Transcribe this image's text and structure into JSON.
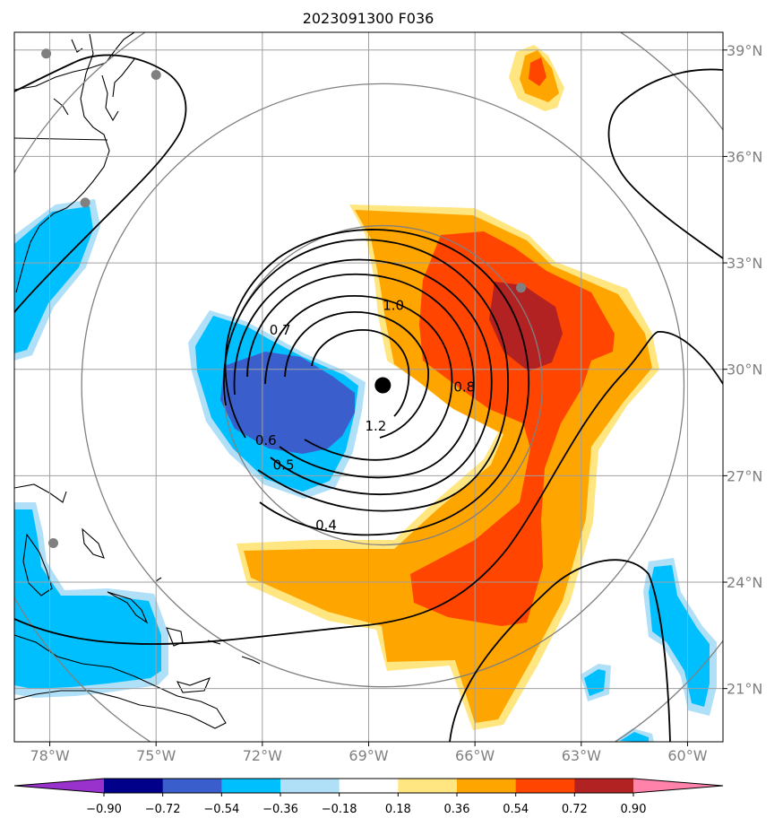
{
  "title": "2023091300 F036",
  "map": {
    "lon_range": [
      -79,
      -59
    ],
    "lat_range": [
      19.5,
      39.5
    ],
    "lon_ticks": [
      {
        "lon": -78,
        "label": "78°W"
      },
      {
        "lon": -75,
        "label": "75°W"
      },
      {
        "lon": -72,
        "label": "72°W"
      },
      {
        "lon": -69,
        "label": "69°W"
      },
      {
        "lon": -66,
        "label": "66°W"
      },
      {
        "lon": -63,
        "label": "63°W"
      },
      {
        "lon": -60,
        "label": "60°W"
      }
    ],
    "lat_ticks": [
      {
        "lat": 39,
        "label": "39°N"
      },
      {
        "lat": 36,
        "label": "36°N"
      },
      {
        "lat": 33,
        "label": "33°N"
      },
      {
        "lat": 30,
        "label": "30°N"
      },
      {
        "lat": 27,
        "label": "27°N"
      },
      {
        "lat": 24,
        "label": "24°N"
      },
      {
        "lat": 21,
        "label": "21°N"
      }
    ],
    "storm_center": {
      "lon": -68.6,
      "lat": 29.55
    },
    "range_rings_deg": [
      4.5,
      8.5,
      12.0
    ],
    "station_dots": [
      {
        "lon": -78.1,
        "lat": 38.9
      },
      {
        "lon": -75.0,
        "lat": 38.3
      },
      {
        "lon": -77.0,
        "lat": 34.7
      },
      {
        "lon": -64.7,
        "lat": 32.3
      },
      {
        "lon": -77.9,
        "lat": 25.1
      }
    ],
    "contour_labels": [
      {
        "text": "1.0",
        "lon": -68.3,
        "lat": 31.8
      },
      {
        "text": "0.7",
        "lon": -71.5,
        "lat": 31.1
      },
      {
        "text": "0.8",
        "lon": -66.3,
        "lat": 29.5
      },
      {
        "text": "1.2",
        "lon": -68.8,
        "lat": 28.4
      },
      {
        "text": "0.6",
        "lon": -71.9,
        "lat": 28.0
      },
      {
        "text": "0.5",
        "lon": -71.4,
        "lat": 27.3
      },
      {
        "text": "0.4",
        "lon": -70.2,
        "lat": 25.6
      }
    ]
  },
  "colorbar": {
    "ticks": [
      "−0.90",
      "−0.72",
      "−0.54",
      "−0.36",
      "−0.18",
      "0.18",
      "0.36",
      "0.54",
      "0.72",
      "0.90"
    ],
    "colors": [
      "#9932cc",
      "#00008b",
      "#3a5fcd",
      "#00bfff",
      "#b0e0f8",
      "#ffffff",
      "#ffe680",
      "#ffa500",
      "#ff4500",
      "#b22222",
      "#ff82ab"
    ]
  }
}
